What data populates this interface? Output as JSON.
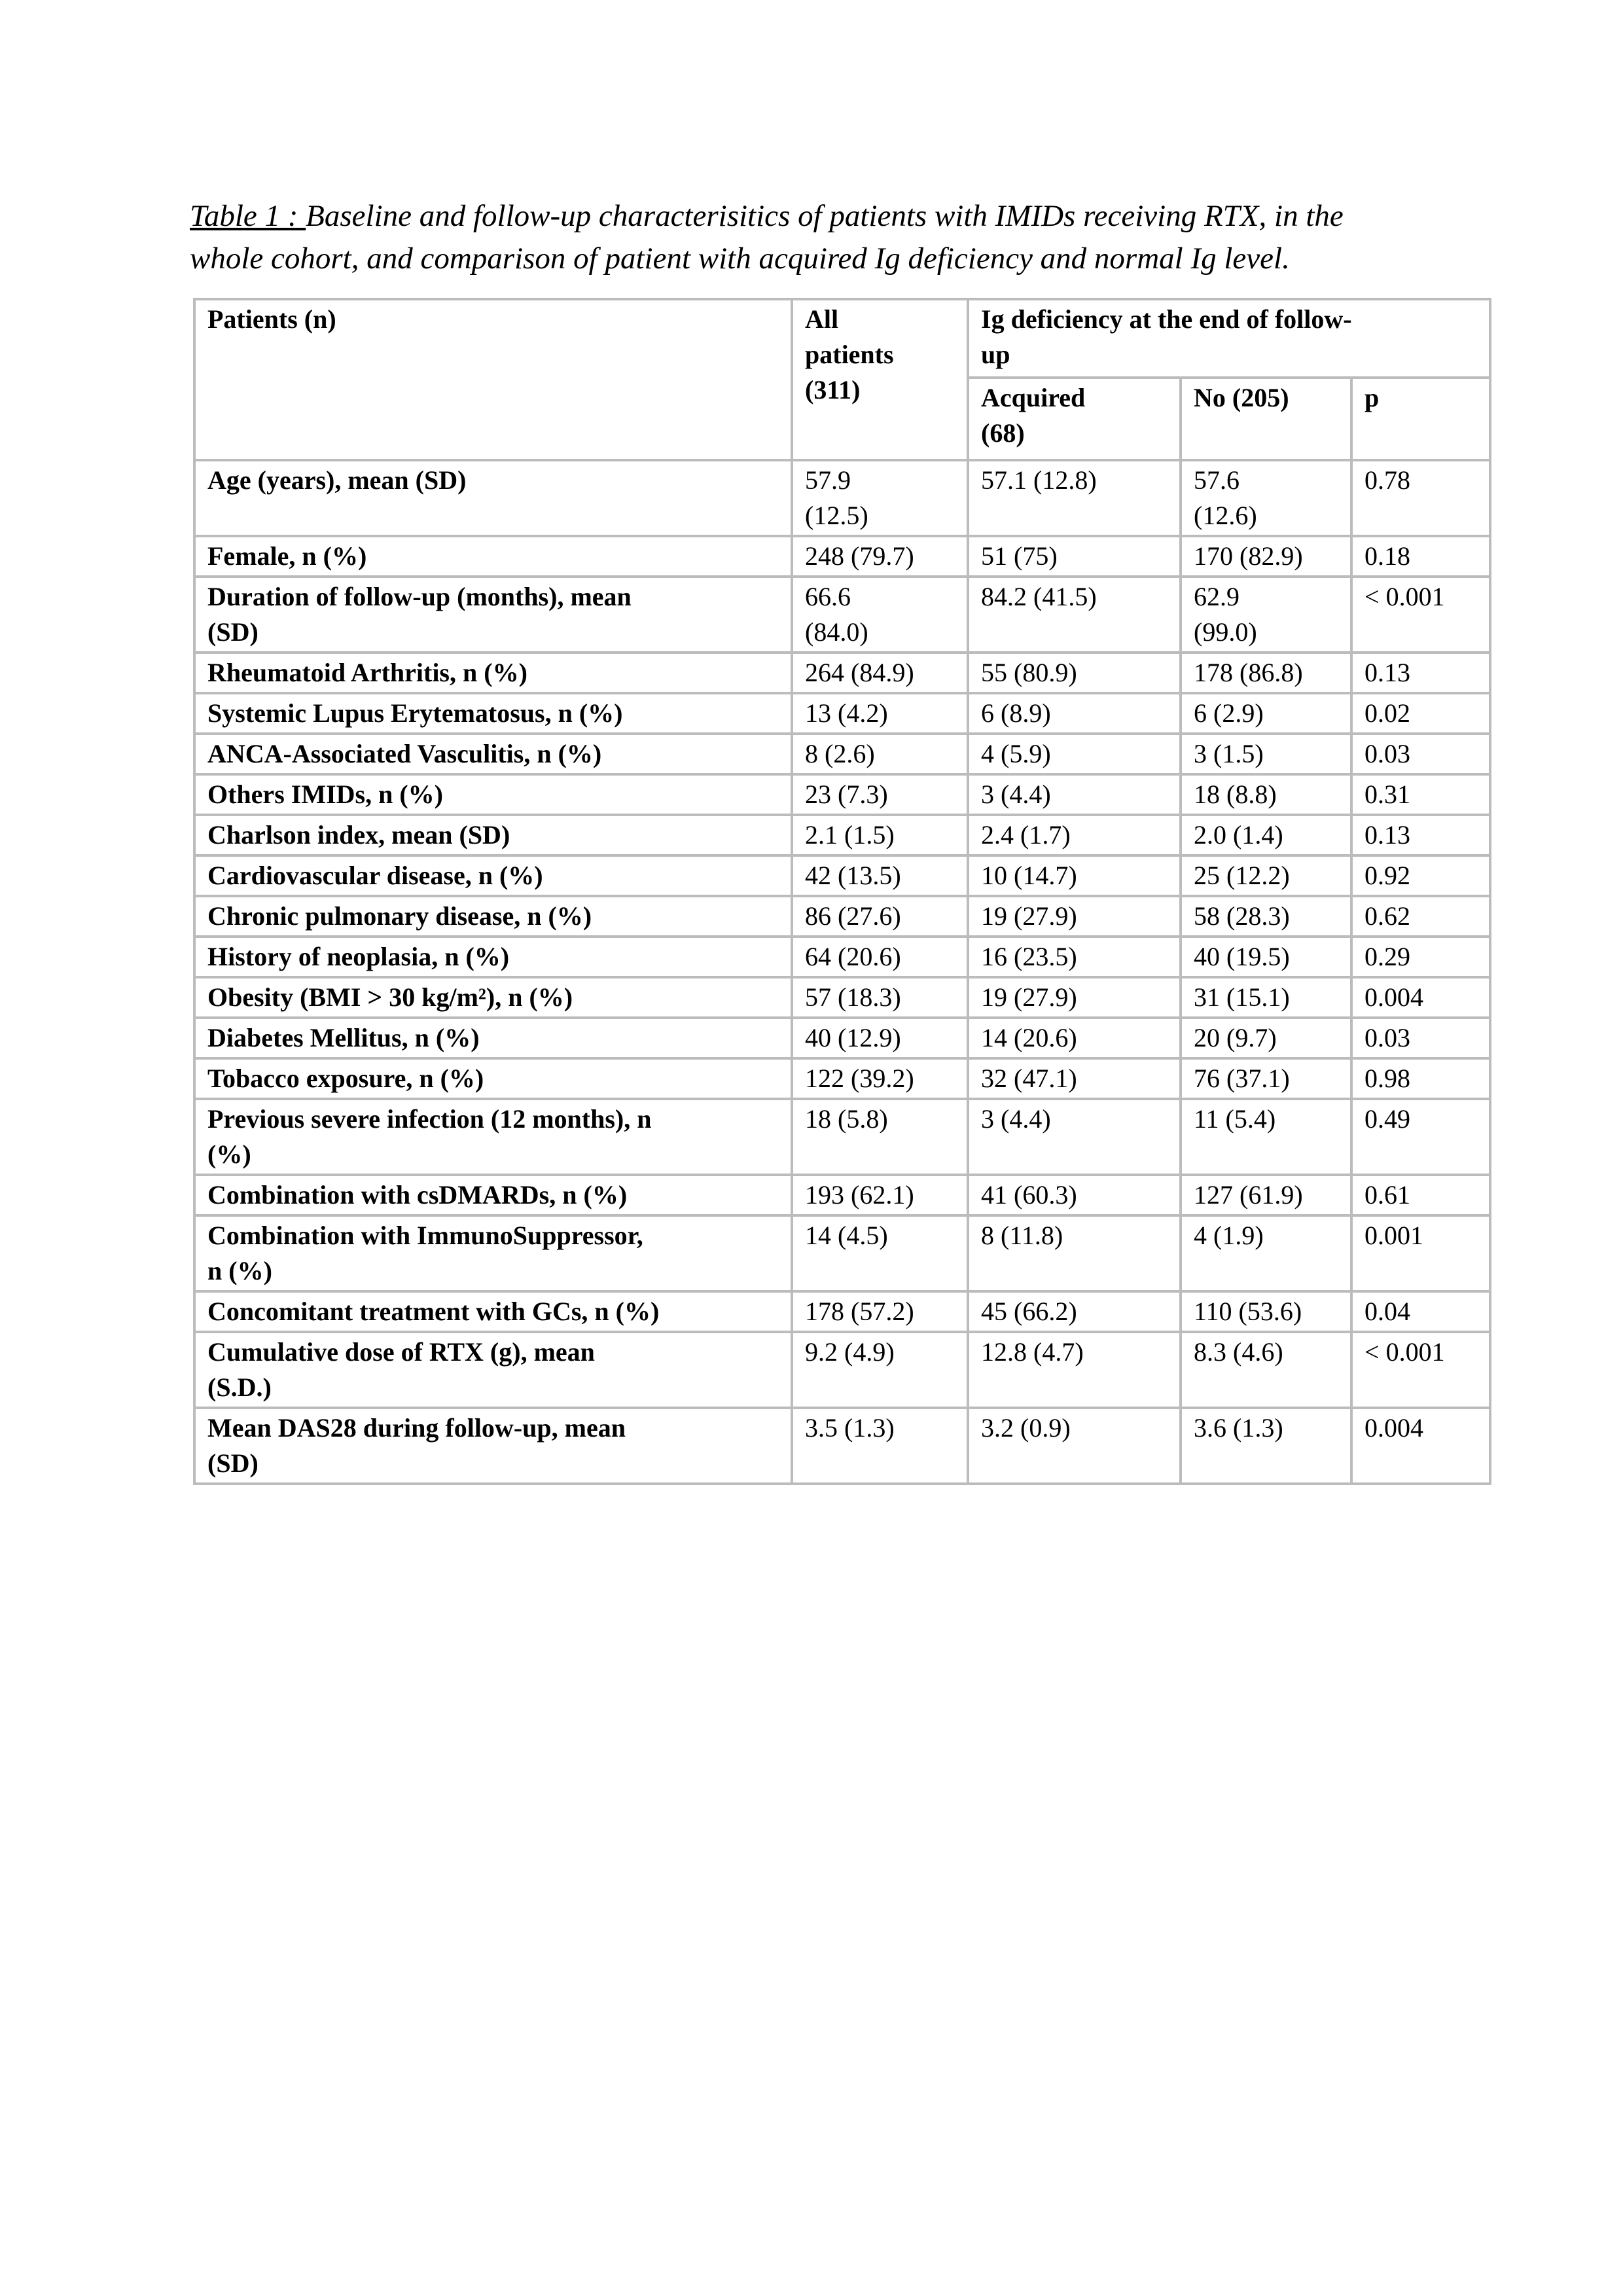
{
  "page": {
    "title": {
      "label": "Table 1 : ",
      "text": "Baseline and follow-up characterisitics of patients with IMIDs receiving RTX, in the\nwhole cohort, and comparison of patient with acquired Ig deficiency and normal Ig level."
    }
  },
  "table": {
    "headers": {
      "patients": "Patients (n)",
      "all_patients": "All\npatients\n(311)",
      "ig_deficiency_group": "Ig deficiency at the end of follow-\nup",
      "acquired": "Acquired\n(68)",
      "no": "No (205)",
      "p": "p"
    },
    "rows": [
      {
        "label": "Age (years), mean (SD)",
        "all": "57.9\n(12.5)",
        "acquired": "57.1 (12.8)",
        "no": "57.6\n(12.6)",
        "p": "0.78",
        "p_bold": false
      },
      {
        "label": "Female, n (%)",
        "all": "248 (79.7)",
        "acquired": "51 (75)",
        "no": "170 (82.9)",
        "p": "0.18",
        "p_bold": false
      },
      {
        "label": "Duration of follow-up (months), mean\n(SD)",
        "all": "66.6\n(84.0)",
        "acquired": "84.2 (41.5)",
        "no": "62.9\n(99.0)",
        "p": "< 0.001",
        "p_bold": true
      },
      {
        "label": "Rheumatoid Arthritis, n (%)",
        "all": "264 (84.9)",
        "acquired": "55 (80.9)",
        "no": "178 (86.8)",
        "p": "0.13",
        "p_bold": false
      },
      {
        "label": "Systemic Lupus Erytematosus, n (%)",
        "all": "13 (4.2)",
        "acquired": "6 (8.9)",
        "no": "6 (2.9)",
        "p": "0.02",
        "p_bold": true
      },
      {
        "label": "ANCA-Associated Vasculitis, n (%)",
        "all": "8 (2.6)",
        "acquired": "4 (5.9)",
        "no": "3 (1.5)",
        "p": "0.03",
        "p_bold": true
      },
      {
        "label": "Others IMIDs, n (%)",
        "all": "23 (7.3)",
        "acquired": "3 (4.4)",
        "no": "18 (8.8)",
        "p": "0.31",
        "p_bold": false
      },
      {
        "label": "Charlson index, mean (SD)",
        "all": "2.1 (1.5)",
        "acquired": "2.4 (1.7)",
        "no": "2.0 (1.4)",
        "p": "0.13",
        "p_bold": false
      },
      {
        "label": "Cardiovascular disease, n (%)",
        "all": "42 (13.5)",
        "acquired": "10 (14.7)",
        "no": "25 (12.2)",
        "p": "0.92",
        "p_bold": false
      },
      {
        "label": "Chronic pulmonary disease, n (%)",
        "all": "86 (27.6)",
        "acquired": "19 (27.9)",
        "no": "58 (28.3)",
        "p": "0.62",
        "p_bold": false
      },
      {
        "label": "History of neoplasia, n (%)",
        "all": "64 (20.6)",
        "acquired": "16 (23.5)",
        "no": "40 (19.5)",
        "p": "0.29",
        "p_bold": false
      },
      {
        "label": "Obesity (BMI > 30 kg/m²), n (%)",
        "all": "57 (18.3)",
        "acquired": "19 (27.9)",
        "no": "31 (15.1)",
        "p": "0.004",
        "p_bold": true
      },
      {
        "label": "Diabetes Mellitus, n (%)",
        "all": "40 (12.9)",
        "acquired": "14 (20.6)",
        "no": "20 (9.7)",
        "p": "0.03",
        "p_bold": true
      },
      {
        "label": "Tobacco exposure, n (%)",
        "all": "122 (39.2)",
        "acquired": "32 (47.1)",
        "no": "76 (37.1)",
        "p": "0.98",
        "p_bold": false
      },
      {
        "label": "Previous severe infection (12 months), n\n(%)",
        "all": "18 (5.8)",
        "acquired": "3 (4.4)",
        "no": "11 (5.4)",
        "p": "0.49",
        "p_bold": false
      },
      {
        "label": "Combination with csDMARDs, n (%)",
        "all": "193 (62.1)",
        "acquired": "41 (60.3)",
        "no": "127 (61.9)",
        "p": "0.61",
        "p_bold": false
      },
      {
        "label": "Combination with ImmunoSuppressor,\nn (%)",
        "all": "14 (4.5)",
        "acquired": "8 (11.8)",
        "no": "4 (1.9)",
        "p": "0.001",
        "p_bold": true
      },
      {
        "label": "Concomitant treatment with GCs, n (%)",
        "all": "178 (57.2)",
        "acquired": "45 (66.2)",
        "no": "110 (53.6)",
        "p": "0.04",
        "p_bold": true
      },
      {
        "label": "Cumulative dose of RTX (g), mean\n(S.D.)",
        "all": "9.2 (4.9)",
        "acquired": "12.8 (4.7)",
        "no": "8.3 (4.6)",
        "p": "< 0.001",
        "p_bold": true
      },
      {
        "label": "Mean DAS28 during follow-up, mean\n(SD)",
        "all": "3.5 (1.3)",
        "acquired": "3.2 (0.9)",
        "no": "3.6 (1.3)",
        "p": "0.004",
        "p_bold": true
      }
    ]
  },
  "colors": {
    "border": "#bcbcbc",
    "text": "#000000",
    "page_background": "#ffffff"
  }
}
